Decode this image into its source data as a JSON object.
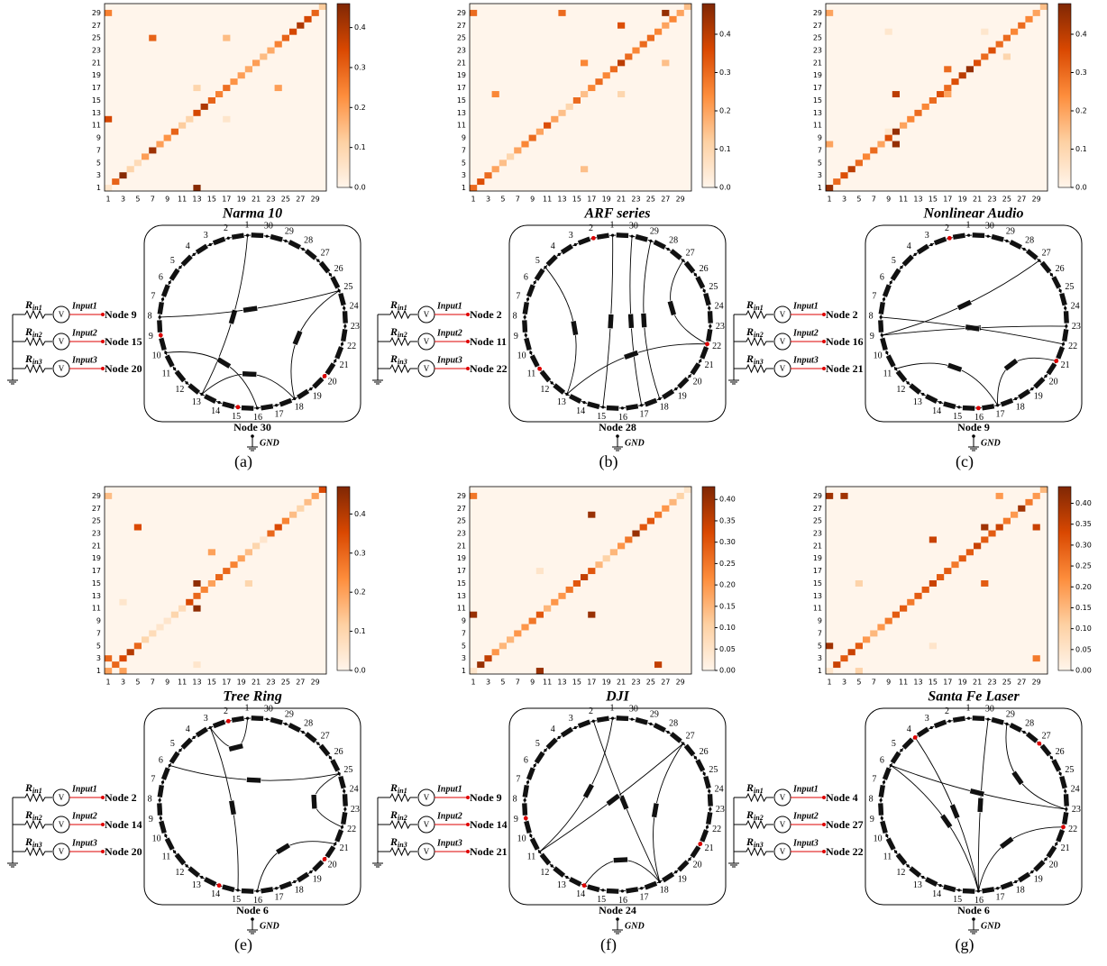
{
  "shared": {
    "axis_ticks": [
      1,
      3,
      5,
      7,
      9,
      11,
      13,
      15,
      17,
      19,
      21,
      23,
      25,
      27,
      29
    ],
    "ring_labels": [
      "1",
      "2",
      "3",
      "4",
      "5",
      "6",
      "7",
      "8",
      "9",
      "10",
      "11",
      "12",
      "13",
      "14",
      "15",
      "16",
      "17",
      "18",
      "19",
      "20",
      "21",
      "22",
      "23",
      "24",
      "25",
      "26",
      "27",
      "28",
      "29",
      "30"
    ],
    "source_symbol": "V",
    "resistor_main": "R",
    "resistor_subs": [
      "in1",
      "in2",
      "in3"
    ],
    "ground": "GND"
  },
  "panels": [
    {
      "caption": "(a)",
      "title": "Narma 10",
      "clim": [
        0,
        0.46
      ],
      "cbar_ticks": [
        {
          "value": 0,
          "label": "0.0"
        },
        {
          "value": 0.1,
          "label": "0.1"
        },
        {
          "value": 0.2,
          "label": "0.2"
        },
        {
          "value": 0.3,
          "label": "0.3"
        },
        {
          "value": 0.4,
          "label": "0.4"
        }
      ],
      "diagonal": [
        0.05,
        0.3,
        0.45,
        0.1,
        0.08,
        0.2,
        0.42,
        0.2,
        0.22,
        0.3,
        0.12,
        0.1,
        0.35,
        0.4,
        0.3,
        0.25,
        0.28,
        0.22,
        0.2,
        0.18,
        0.2,
        0.15,
        0.18,
        0.25,
        0.3,
        0.35,
        0.4,
        0.35,
        0.3,
        0.12
      ],
      "cells": [
        [
          1,
          12,
          0.35
        ],
        [
          13,
          1,
          0.45
        ],
        [
          7,
          25,
          0.3
        ],
        [
          17,
          25,
          0.15
        ],
        [
          13,
          17,
          0.1
        ],
        [
          24,
          17,
          0.2
        ],
        [
          17,
          12,
          0.05
        ],
        [
          1,
          29,
          0.25
        ]
      ],
      "inputs": [
        {
          "name": "Input1",
          "node": "Node 9"
        },
        {
          "name": "Input2",
          "node": "Node 15"
        },
        {
          "name": "Input3",
          "node": "Node 20"
        }
      ],
      "output": "Node 30",
      "connections": [
        [
          1,
          13
        ],
        [
          8,
          25
        ],
        [
          10,
          16
        ],
        [
          13,
          18
        ],
        [
          18,
          25
        ]
      ]
    },
    {
      "caption": "(b)",
      "title": "ARF series",
      "clim": [
        0,
        0.48
      ],
      "cbar_ticks": [
        {
          "value": 0,
          "label": "0.0"
        },
        {
          "value": 0.1,
          "label": "0.1"
        },
        {
          "value": 0.2,
          "label": "0.2"
        },
        {
          "value": 0.3,
          "label": "0.3"
        },
        {
          "value": 0.4,
          "label": "0.4"
        }
      ],
      "diagonal": [
        0.3,
        0.35,
        0.3,
        0.2,
        0.15,
        0.1,
        0.2,
        0.25,
        0.3,
        0.2,
        0.35,
        0.2,
        0.15,
        0.1,
        0.3,
        0.15,
        0.25,
        0.3,
        0.25,
        0.3,
        0.4,
        0.3,
        0.25,
        0.3,
        0.3,
        0.25,
        0.2,
        0.25,
        0.2,
        0.15
      ],
      "cells": [
        [
          1,
          29,
          0.3
        ],
        [
          13,
          29,
          0.3
        ],
        [
          21,
          27,
          0.35
        ],
        [
          27,
          29,
          0.45
        ],
        [
          4,
          16,
          0.25
        ],
        [
          16,
          21,
          0.25
        ],
        [
          27,
          21,
          0.15
        ],
        [
          16,
          4,
          0.15
        ],
        [
          21,
          16,
          0.1
        ]
      ],
      "inputs": [
        {
          "name": "Input1",
          "node": "Node 2"
        },
        {
          "name": "Input2",
          "node": "Node 11"
        },
        {
          "name": "Input3",
          "node": "Node 22"
        }
      ],
      "output": "Node 28",
      "connections": [
        [
          5,
          13
        ],
        [
          1,
          15
        ],
        [
          30,
          17
        ],
        [
          29,
          18
        ],
        [
          27,
          22
        ],
        [
          13,
          22
        ]
      ]
    },
    {
      "caption": "(c)",
      "title": "Nonlinear Audio",
      "clim": [
        0,
        0.48
      ],
      "cbar_ticks": [
        {
          "value": 0,
          "label": "0.0"
        },
        {
          "value": 0.1,
          "label": "0.1"
        },
        {
          "value": 0.2,
          "label": "0.2"
        },
        {
          "value": 0.3,
          "label": "0.3"
        },
        {
          "value": 0.4,
          "label": "0.4"
        }
      ],
      "diagonal": [
        0.45,
        0.3,
        0.35,
        0.4,
        0.3,
        0.25,
        0.3,
        0.2,
        0.35,
        0.45,
        0.2,
        0.25,
        0.3,
        0.25,
        0.3,
        0.35,
        0.3,
        0.35,
        0.4,
        0.45,
        0.35,
        0.3,
        0.35,
        0.3,
        0.3,
        0.25,
        0.3,
        0.25,
        0.2,
        0.15
      ],
      "cells": [
        [
          1,
          29,
          0.2
        ],
        [
          1,
          8,
          0.2
        ],
        [
          9,
          26,
          0.05
        ],
        [
          10,
          8,
          0.45
        ],
        [
          10,
          16,
          0.4
        ],
        [
          22,
          26,
          0.05
        ],
        [
          25,
          22,
          0.1
        ],
        [
          17,
          20,
          0.3
        ],
        [
          17,
          16,
          0.2
        ],
        [
          9,
          10,
          0.05
        ]
      ],
      "inputs": [
        {
          "name": "Input1",
          "node": "Node 2"
        },
        {
          "name": "Input2",
          "node": "Node 16"
        },
        {
          "name": "Input3",
          "node": "Node 21"
        }
      ],
      "output": "Node 9",
      "connections": [
        [
          9,
          27
        ],
        [
          9,
          23
        ],
        [
          11,
          17
        ],
        [
          17,
          21
        ],
        [
          8,
          22
        ]
      ]
    },
    {
      "caption": "(e)",
      "title": "Tree Ring",
      "clim": [
        0,
        0.47
      ],
      "cbar_ticks": [
        {
          "value": 0,
          "label": "0.0"
        },
        {
          "value": 0.1,
          "label": "0.1"
        },
        {
          "value": 0.2,
          "label": "0.2"
        },
        {
          "value": 0.3,
          "label": "0.3"
        },
        {
          "value": 0.4,
          "label": "0.4"
        }
      ],
      "diagonal": [
        0.2,
        0.3,
        0.35,
        0.4,
        0.3,
        0.1,
        0.08,
        0.05,
        0.05,
        0.1,
        0.08,
        0.35,
        0.3,
        0.25,
        0.2,
        0.3,
        0.3,
        0.25,
        0.2,
        0.15,
        0.1,
        0.05,
        0.3,
        0.35,
        0.25,
        0.15,
        0.1,
        0.15,
        0.2,
        0.35
      ],
      "cells": [
        [
          1,
          29,
          0.15
        ],
        [
          1,
          3,
          0.3
        ],
        [
          5,
          24,
          0.35
        ],
        [
          13,
          15,
          0.45
        ],
        [
          13,
          11,
          0.45
        ],
        [
          15,
          20,
          0.2
        ],
        [
          3,
          12,
          0.05
        ],
        [
          20,
          15,
          0.1
        ],
        [
          13,
          2,
          0.05
        ],
        [
          3,
          1,
          0.2
        ]
      ],
      "inputs": [
        {
          "name": "Input1",
          "node": "Node 2"
        },
        {
          "name": "Input2",
          "node": "Node 14"
        },
        {
          "name": "Input3",
          "node": "Node 20"
        }
      ],
      "output": "Node 6",
      "connections": [
        [
          3,
          15
        ],
        [
          6,
          25
        ],
        [
          16,
          21
        ],
        [
          22,
          25
        ],
        [
          1,
          3
        ]
      ]
    },
    {
      "caption": "(f)",
      "title": "DJI",
      "clim": [
        0,
        0.43
      ],
      "cbar_ticks": [
        {
          "value": 0,
          "label": "0.00"
        },
        {
          "value": 0.05,
          "label": "0.05"
        },
        {
          "value": 0.1,
          "label": "0.10"
        },
        {
          "value": 0.15,
          "label": "0.15"
        },
        {
          "value": 0.2,
          "label": "0.20"
        },
        {
          "value": 0.25,
          "label": "0.25"
        },
        {
          "value": 0.3,
          "label": "0.30"
        },
        {
          "value": 0.35,
          "label": "0.35"
        },
        {
          "value": 0.4,
          "label": "0.40"
        }
      ],
      "diagonal": [
        0.05,
        0.4,
        0.35,
        0.2,
        0.15,
        0.15,
        0.2,
        0.2,
        0.25,
        0.3,
        0.15,
        0.2,
        0.2,
        0.25,
        0.3,
        0.35,
        0.3,
        0.15,
        0.1,
        0.15,
        0.2,
        0.25,
        0.4,
        0.3,
        0.3,
        0.25,
        0.2,
        0.15,
        0.1,
        0.05
      ],
      "cells": [
        [
          1,
          29,
          0.25
        ],
        [
          1,
          10,
          0.4
        ],
        [
          17,
          26,
          0.4
        ],
        [
          17,
          10,
          0.4
        ],
        [
          10,
          1,
          0.4
        ],
        [
          26,
          2,
          0.35
        ],
        [
          10,
          17,
          0.05
        ]
      ],
      "inputs": [
        {
          "name": "Input1",
          "node": "Node 9"
        },
        {
          "name": "Input2",
          "node": "Node 14"
        },
        {
          "name": "Input3",
          "node": "Node 21"
        }
      ],
      "output": "Node 24",
      "connections": [
        [
          1,
          11
        ],
        [
          2,
          18
        ],
        [
          27,
          11
        ],
        [
          27,
          18
        ],
        [
          14,
          18
        ]
      ]
    },
    {
      "caption": "(g)",
      "title": "Santa Fe Laser",
      "clim": [
        0,
        0.44
      ],
      "cbar_ticks": [
        {
          "value": 0,
          "label": "0.00"
        },
        {
          "value": 0.05,
          "label": "0.05"
        },
        {
          "value": 0.1,
          "label": "0.10"
        },
        {
          "value": 0.15,
          "label": "0.15"
        },
        {
          "value": 0.2,
          "label": "0.20"
        },
        {
          "value": 0.25,
          "label": "0.25"
        },
        {
          "value": 0.3,
          "label": "0.30"
        },
        {
          "value": 0.35,
          "label": "0.35"
        },
        {
          "value": 0.4,
          "label": "0.40"
        }
      ],
      "diagonal": [
        0.05,
        0.35,
        0.3,
        0.35,
        0.3,
        0.2,
        0.15,
        0.2,
        0.25,
        0.3,
        0.3,
        0.25,
        0.3,
        0.3,
        0.35,
        0.3,
        0.3,
        0.25,
        0.3,
        0.3,
        0.35,
        0.3,
        0.3,
        0.35,
        0.25,
        0.2,
        0.4,
        0.25,
        0.2,
        0.15
      ],
      "cells": [
        [
          1,
          29,
          0.4
        ],
        [
          3,
          29,
          0.4
        ],
        [
          1,
          5,
          0.4
        ],
        [
          5,
          1,
          0.1
        ],
        [
          5,
          15,
          0.1
        ],
        [
          15,
          22,
          0.35
        ],
        [
          22,
          24,
          0.4
        ],
        [
          22,
          15,
          0.3
        ],
        [
          29,
          3,
          0.25
        ],
        [
          29,
          24,
          0.35
        ],
        [
          15,
          5,
          0.05
        ],
        [
          24,
          29,
          0.2
        ]
      ],
      "inputs": [
        {
          "name": "Input1",
          "node": "Node 4"
        },
        {
          "name": "Input2",
          "node": "Node 27"
        },
        {
          "name": "Input3",
          "node": "Node 22"
        }
      ],
      "output": "Node 6",
      "connections": [
        [
          6,
          16
        ],
        [
          4,
          16
        ],
        [
          30,
          16
        ],
        [
          29,
          23
        ],
        [
          22,
          16
        ],
        [
          6,
          23
        ]
      ]
    }
  ]
}
